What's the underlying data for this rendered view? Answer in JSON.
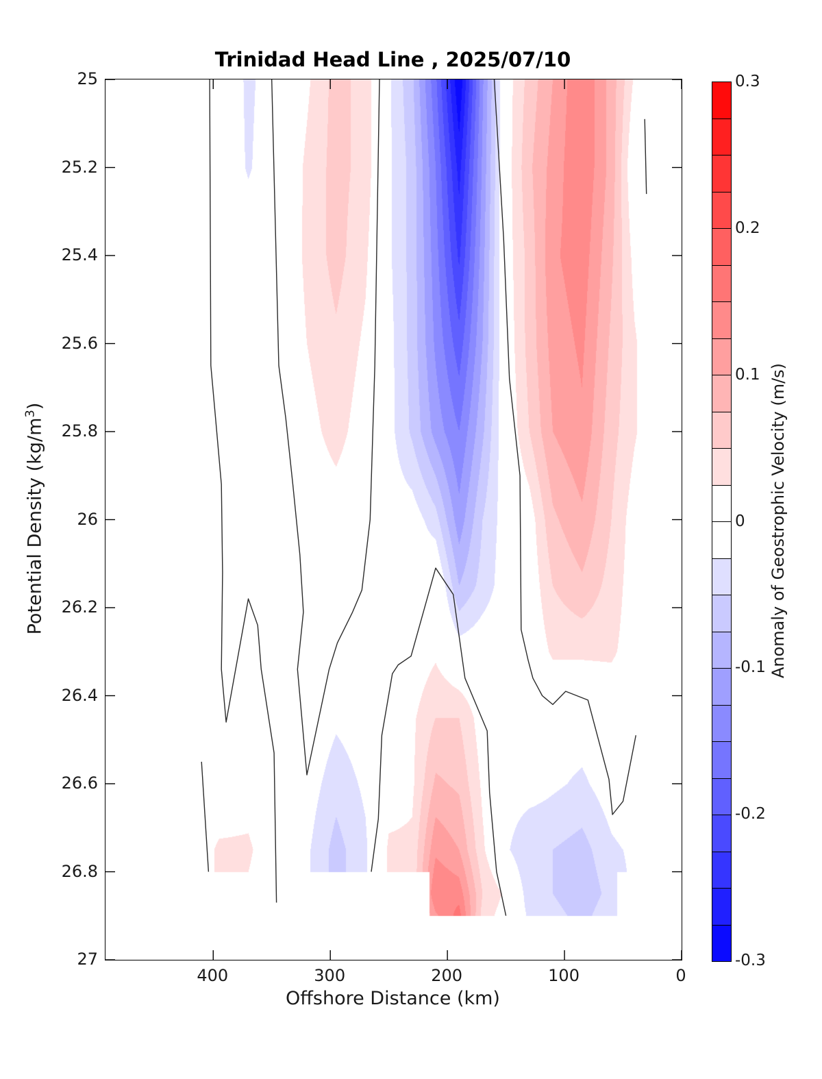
{
  "figure": {
    "title": "Trinidad Head Line , 2025/07/10",
    "xlabel": "Offshore Distance (km)",
    "ylabel_pre": "Potential Density (kg/m",
    "ylabel_sup": "3",
    "ylabel_post": ")",
    "colorbar_label": "Anomaly of Geostrophic Velocity (m/s)"
  },
  "chart_data": {
    "type": "heatmap",
    "subtype": "filled-contour-section",
    "title": "Trinidad Head Line , 2025/07/10",
    "xlabel": "Offshore Distance (km)",
    "ylabel": "Potential Density (kg/m3)",
    "colorbar_label": "Anomaly of Geostrophic Velocity (m/s)",
    "x_axis": {
      "range_km": [
        492,
        0
      ],
      "reversed": true,
      "ticks": [
        {
          "label": "400",
          "km": 400
        },
        {
          "label": "300",
          "km": 300
        },
        {
          "label": "200",
          "km": 200
        },
        {
          "label": "100",
          "km": 100
        },
        {
          "label": "0",
          "km": 0
        }
      ]
    },
    "y_axis": {
      "range": [
        25,
        27
      ],
      "increases_downward": true,
      "ticks": [
        {
          "label": "25",
          "density": 25.0
        },
        {
          "label": "25.2",
          "density": 25.2
        },
        {
          "label": "25.4",
          "density": 25.4
        },
        {
          "label": "25.6",
          "density": 25.6
        },
        {
          "label": "25.8",
          "density": 25.8
        },
        {
          "label": "26",
          "density": 26.0
        },
        {
          "label": "26.2",
          "density": 26.2
        },
        {
          "label": "26.4",
          "density": 26.4
        },
        {
          "label": "26.6",
          "density": 26.6
        },
        {
          "label": "26.8",
          "density": 26.8
        },
        {
          "label": "27",
          "density": 27.0
        }
      ]
    },
    "colorbar": {
      "min": -0.3,
      "max": 0.3,
      "level_step": 0.025,
      "n_segments": 24,
      "colormap": "blue-white-red",
      "pure_red_hex": "#ff0000",
      "pure_blue_hex": "#0000ff",
      "white_hex": "#ffffff",
      "ticks": [
        {
          "label": "0.3",
          "value": 0.3
        },
        {
          "label": "0.2",
          "value": 0.2
        },
        {
          "label": "0.1",
          "value": 0.1
        },
        {
          "label": "0",
          "value": 0.0
        },
        {
          "label": "-0.1",
          "value": -0.1
        },
        {
          "label": "-0.2",
          "value": -0.2
        },
        {
          "label": "-0.3",
          "value": -0.3
        }
      ]
    },
    "grid_km": [
      490,
      450,
      420,
      395,
      370,
      345,
      320,
      295,
      270,
      250,
      230,
      210,
      190,
      170,
      150,
      130,
      110,
      85,
      60,
      40,
      20,
      0
    ],
    "grid_density": [
      25.0,
      25.2,
      25.4,
      25.6,
      25.8,
      26.0,
      26.15,
      26.3,
      26.45,
      26.6,
      26.75,
      26.85,
      26.9
    ],
    "values_mps": [
      [
        0,
        0,
        0,
        0,
        -0.03,
        -0.01,
        0.02,
        0.06,
        0.04,
        -0.02,
        -0.07,
        -0.17,
        -0.3,
        -0.13,
        0.01,
        0.06,
        0.1,
        0.15,
        0.09,
        0.02,
        0,
        0
      ],
      [
        0,
        0,
        0,
        0,
        -0.028,
        -0.005,
        0.03,
        0.06,
        0.04,
        -0.02,
        -0.06,
        -0.15,
        -0.26,
        -0.12,
        0.01,
        0.07,
        0.11,
        0.15,
        0.09,
        -0.005,
        0,
        0
      ],
      [
        0,
        0,
        0,
        0,
        -0.005,
        0,
        0.03,
        0.06,
        0.03,
        -0.02,
        -0.06,
        -0.14,
        -0.23,
        -0.11,
        0.01,
        0.06,
        0.12,
        0.14,
        0.08,
        0.015,
        0,
        0
      ],
      [
        0,
        0,
        0,
        0,
        0,
        0,
        0.025,
        0.045,
        0.02,
        -0.015,
        -0.06,
        -0.13,
        -0.19,
        -0.1,
        0.005,
        0.06,
        0.11,
        0.13,
        0.07,
        0.028,
        0,
        0
      ],
      [
        0,
        0,
        0,
        0,
        0,
        0,
        0.015,
        0.035,
        0.01,
        -0.015,
        -0.055,
        -0.11,
        -0.15,
        -0.08,
        0,
        0.05,
        0.1,
        0.12,
        0.06,
        0.028,
        0,
        0
      ],
      [
        0,
        0,
        0,
        0,
        0,
        0,
        0.005,
        0.01,
        0,
        -0.01,
        -0.01,
        -0.04,
        -0.115,
        -0.05,
        -0.01,
        0.01,
        0.07,
        0.095,
        0.05,
        0.01,
        0,
        0
      ],
      [
        0,
        0,
        0,
        0,
        0,
        0,
        0,
        0,
        -0.005,
        -0.01,
        -0.01,
        0.01,
        -0.075,
        -0.04,
        -0.01,
        0.005,
        0.05,
        0.07,
        0.04,
        0.01,
        0,
        0
      ],
      [
        0,
        0,
        0,
        -0.005,
        -0.01,
        0,
        -0.01,
        -0.01,
        0.005,
        0.01,
        0.005,
        0.02,
        -0.01,
        -0.005,
        -0.005,
        0,
        0.03,
        0.03,
        0.03,
        0.01,
        0,
        0
      ],
      [
        0,
        0,
        0,
        -0.005,
        -0.005,
        0,
        0,
        -0.02,
        -0.01,
        0.01,
        0.02,
        0.05,
        0.05,
        0.01,
        -0.01,
        -0.01,
        -0.01,
        -0.01,
        0,
        0,
        0,
        0
      ],
      [
        0,
        0,
        0,
        0,
        0.01,
        -0.005,
        -0.01,
        -0.04,
        -0.02,
        0.01,
        0.02,
        0.08,
        0.07,
        0.02,
        -0.01,
        -0.01,
        -0.02,
        -0.03,
        -0.01,
        0,
        0,
        0
      ],
      [
        0,
        0,
        0,
        0.03,
        0.03,
        0,
        -0.02,
        -0.06,
        -0.03,
        0.03,
        0.03,
        0.12,
        0.1,
        0.03,
        -0.02,
        -0.05,
        -0.05,
        -0.06,
        -0.03,
        -0.02,
        0,
        0
      ],
      [
        0,
        0,
        0,
        0.03,
        0.02,
        0,
        -0.02,
        -0.06,
        -0.03,
        0.03,
        0.03,
        0.15,
        0.14,
        0.05,
        0.02,
        -0.04,
        -0.05,
        -0.07,
        -0.04,
        -0.02,
        0,
        0
      ],
      [
        0,
        0,
        0,
        0.03,
        0.02,
        0,
        -0.02,
        -0.06,
        -0.03,
        0.03,
        0.03,
        0.12,
        0.16,
        0.04,
        0.01,
        -0.03,
        -0.04,
        -0.06,
        -0.03,
        -0.01,
        0,
        0
      ]
    ],
    "no_data_mask": {
      "white_below_density": 26.9,
      "white_below_density_when_km_outside_55_to_215": 26.8
    },
    "zero_contour_lines_km_density": [
      [
        [
          403,
          25.0
        ],
        [
          402,
          25.65
        ],
        [
          398,
          25.77
        ],
        [
          393,
          25.92
        ],
        [
          392,
          26.12
        ],
        [
          393,
          26.34
        ],
        [
          389,
          26.46
        ],
        [
          370,
          26.18
        ],
        [
          362,
          26.24
        ],
        [
          359,
          26.34
        ],
        [
          348,
          26.53
        ],
        [
          346,
          26.87
        ]
      ],
      [
        [
          350,
          25.0
        ],
        [
          344,
          25.65
        ],
        [
          338,
          25.77
        ],
        [
          332,
          25.92
        ],
        [
          326,
          26.08
        ],
        [
          323,
          26.21
        ],
        [
          328,
          26.34
        ],
        [
          320,
          26.58
        ],
        [
          301,
          26.34
        ],
        [
          294,
          26.28
        ],
        [
          281,
          26.21
        ],
        [
          273,
          26.16
        ],
        [
          266,
          26.0
        ],
        [
          262,
          25.65
        ],
        [
          258,
          25.0
        ]
      ],
      [
        [
          160,
          25.0
        ],
        [
          152,
          25.36
        ],
        [
          147,
          25.68
        ],
        [
          138,
          25.9
        ],
        [
          137,
          26.25
        ],
        [
          131,
          26.32
        ],
        [
          127,
          26.36
        ],
        [
          119,
          26.4
        ],
        [
          110,
          26.42
        ],
        [
          99,
          26.39
        ],
        [
          80,
          26.41
        ],
        [
          62,
          26.59
        ],
        [
          59,
          26.67
        ],
        [
          50,
          26.64
        ],
        [
          39,
          26.49
        ]
      ],
      [
        [
          265,
          26.8
        ],
        [
          259,
          26.68
        ],
        [
          256,
          26.49
        ],
        [
          247,
          26.35
        ],
        [
          242,
          26.33
        ],
        [
          231,
          26.31
        ],
        [
          210,
          26.11
        ],
        [
          195,
          26.17
        ],
        [
          185,
          26.36
        ],
        [
          166,
          26.48
        ],
        [
          164,
          26.62
        ],
        [
          158,
          26.8
        ],
        [
          150,
          26.9
        ]
      ],
      [
        [
          31.5,
          25.09
        ],
        [
          30,
          25.26
        ]
      ],
      [
        [
          410,
          26.55
        ],
        [
          404,
          26.8
        ]
      ]
    ]
  }
}
